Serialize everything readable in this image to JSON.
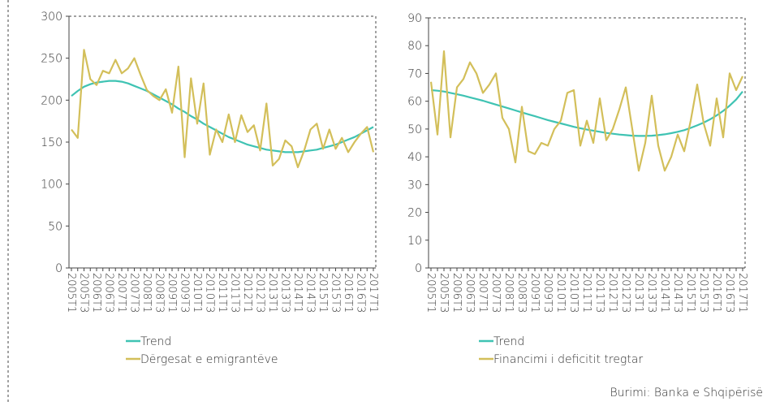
{
  "chart_data": [
    {
      "type": "line",
      "categories": [
        "2005T1",
        null,
        "2005T3",
        null,
        "2006T1",
        null,
        "2006T3",
        null,
        "2007T1",
        null,
        "2007T3",
        null,
        "2008T1",
        null,
        "2008T3",
        null,
        "2009T1",
        null,
        "2009T3",
        null,
        "2010T1",
        null,
        "2010T3",
        null,
        "2011T1",
        null,
        "2011T3",
        null,
        "2012T1",
        null,
        "2012T3",
        null,
        "2013T1",
        null,
        "2013T3",
        null,
        "2014T1",
        null,
        "2014T3",
        null,
        "2015T1",
        null,
        "2015T3",
        null,
        "2016T1",
        null,
        "2016T3",
        null,
        "2017T1"
      ],
      "series": [
        {
          "name": "Trend",
          "color": "#3fc3b3",
          "values": [
            205,
            211,
            216,
            219,
            221,
            222,
            223,
            223,
            222,
            220,
            217,
            214,
            211,
            207,
            203,
            199,
            195,
            190,
            186,
            181,
            177,
            172,
            168,
            164,
            160,
            156,
            153,
            150,
            147,
            145,
            143,
            141,
            140,
            139,
            138,
            138,
            138,
            139,
            140,
            141,
            143,
            145,
            147,
            150,
            153,
            156,
            160,
            164,
            168
          ]
        },
        {
          "name": "Dërgesat e emigrantëve",
          "color": "#d3bf5a",
          "values": [
            165,
            155,
            260,
            225,
            218,
            235,
            232,
            248,
            232,
            238,
            250,
            230,
            212,
            205,
            200,
            213,
            185,
            240,
            132,
            226,
            172,
            220,
            135,
            165,
            150,
            183,
            150,
            182,
            162,
            170,
            140,
            196,
            122,
            130,
            152,
            145,
            120,
            140,
            165,
            172,
            142,
            165,
            142,
            155,
            138,
            150,
            160,
            168,
            138
          ]
        }
      ],
      "ylim": [
        0,
        300
      ],
      "yticks": [
        0,
        50,
        100,
        150,
        200,
        250,
        300
      ]
    },
    {
      "type": "line",
      "categories": [
        "2005T1",
        null,
        "2005T3",
        null,
        "2006T1",
        null,
        "2006T3",
        null,
        "2007T1",
        null,
        "2007T3",
        null,
        "2008T1",
        null,
        "2008T3",
        null,
        "2009T1",
        null,
        "2009T3",
        null,
        "2010T1",
        null,
        "2010T3",
        null,
        "2011T1",
        null,
        "2011T3",
        null,
        "2012T1",
        null,
        "2012T3",
        null,
        "2013T1",
        null,
        "2013T3",
        null,
        "2014T1",
        null,
        "2014T3",
        null,
        "2015T1",
        null,
        "2015T3",
        null,
        "2016T1",
        null,
        "2016T3",
        null,
        "2017T1"
      ],
      "series": [
        {
          "name": "Trend",
          "color": "#3fc3b3",
          "values": [
            64,
            63.8,
            63.5,
            63,
            62.5,
            62,
            61.4,
            60.8,
            60.2,
            59.5,
            58.8,
            58.1,
            57.4,
            56.7,
            56,
            55.3,
            54.6,
            53.9,
            53.2,
            52.6,
            52,
            51.4,
            50.8,
            50.3,
            49.8,
            49.4,
            49,
            48.6,
            48.3,
            48,
            47.8,
            47.6,
            47.5,
            47.5,
            47.6,
            47.8,
            48.1,
            48.5,
            49,
            49.6,
            50.4,
            51.3,
            52.3,
            53.5,
            54.9,
            56.5,
            58.4,
            60.6,
            63.5
          ]
        },
        {
          "name": "Financimi i deficitit tregtar",
          "color": "#d3bf5a",
          "values": [
            67,
            48,
            78,
            47,
            65,
            68,
            74,
            70,
            63,
            66,
            70,
            54,
            50,
            38,
            58,
            42,
            41,
            45,
            44,
            50,
            53,
            63,
            64,
            44,
            53,
            45,
            61,
            46,
            50,
            57,
            65,
            50,
            35,
            45,
            62,
            44,
            35,
            40,
            48,
            42,
            53,
            66,
            52,
            44,
            61,
            47,
            70,
            64,
            69
          ]
        }
      ],
      "ylim": [
        0,
        90
      ],
      "yticks": [
        0,
        10,
        20,
        30,
        40,
        50,
        60,
        70,
        80,
        90
      ]
    }
  ],
  "source": "Burimi: Banka e Shqipërisë"
}
